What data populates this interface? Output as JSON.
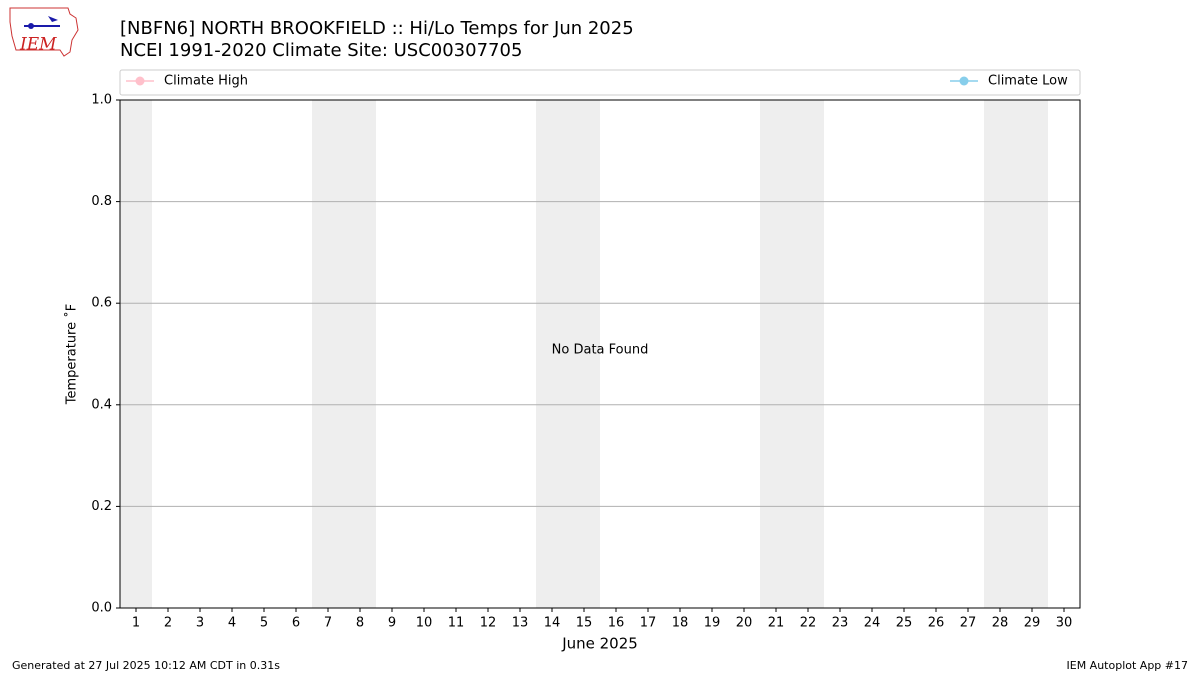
{
  "logo_text": "IEM",
  "footer": {
    "left": "Generated at 27 Jul 2025 10:12 AM CDT in 0.31s",
    "right": "IEM Autoplot App #17"
  },
  "chart_data": {
    "type": "line",
    "title": "[NBFN6] NORTH BROOKFIELD :: Hi/Lo Temps for Jun 2025",
    "subtitle": "NCEI 1991-2020 Climate Site: USC00307705",
    "xlabel": "June 2025",
    "ylabel": "Temperature ˚F",
    "annotation": "No Data Found",
    "x": [
      1,
      2,
      3,
      4,
      5,
      6,
      7,
      8,
      9,
      10,
      11,
      12,
      13,
      14,
      15,
      16,
      17,
      18,
      19,
      20,
      21,
      22,
      23,
      24,
      25,
      26,
      27,
      28,
      29,
      30
    ],
    "series": [
      {
        "name": "Climate High",
        "color": "#ffc0cb",
        "values": [
          null,
          null,
          null,
          null,
          null,
          null,
          null,
          null,
          null,
          null,
          null,
          null,
          null,
          null,
          null,
          null,
          null,
          null,
          null,
          null,
          null,
          null,
          null,
          null,
          null,
          null,
          null,
          null,
          null,
          null
        ]
      },
      {
        "name": "Climate Low",
        "color": "#87ceeb",
        "values": [
          null,
          null,
          null,
          null,
          null,
          null,
          null,
          null,
          null,
          null,
          null,
          null,
          null,
          null,
          null,
          null,
          null,
          null,
          null,
          null,
          null,
          null,
          null,
          null,
          null,
          null,
          null,
          null,
          null,
          null
        ]
      }
    ],
    "xlim": [
      0.5,
      30.5
    ],
    "xticks": [
      1,
      2,
      3,
      4,
      5,
      6,
      7,
      8,
      9,
      10,
      11,
      12,
      13,
      14,
      15,
      16,
      17,
      18,
      19,
      20,
      21,
      22,
      23,
      24,
      25,
      26,
      27,
      28,
      29,
      30
    ],
    "ylim": [
      0,
      1
    ],
    "yticks": [
      {
        "value": 0,
        "label": "0.0"
      },
      0.2,
      0.4,
      0.6,
      0.8,
      {
        "value": 1,
        "label": "1.0"
      }
    ],
    "grid": true
  }
}
